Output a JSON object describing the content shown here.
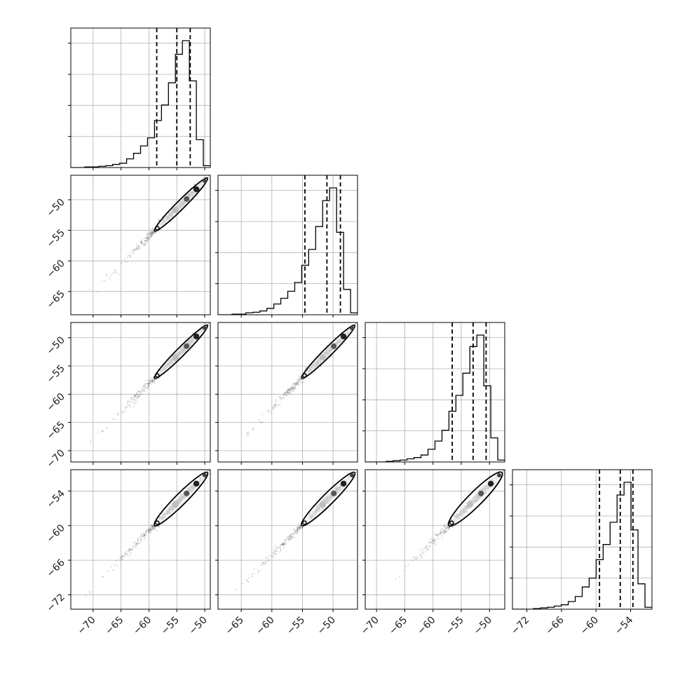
{
  "chart_data": {
    "type": "corner",
    "params": [
      {
        "axis_ticks": [
          -70,
          -65,
          -60,
          -55,
          -50
        ],
        "tick_labels": [
          "−70",
          "−65",
          "−60",
          "−55",
          "−50"
        ],
        "range": [
          -74,
          -49
        ],
        "quantiles": [
          -58.6,
          -55.0,
          -52.6
        ],
        "hist_edges": [
          -74,
          -72.75,
          -71.5,
          -70.25,
          -69,
          -67.75,
          -66.5,
          -65.25,
          -64,
          -62.75,
          -61.5,
          -60.25,
          -59,
          -57.75,
          -56.5,
          -55.25,
          -54,
          -52.75,
          -51.5,
          -50.25,
          -49
        ],
        "hist_counts": [
          0,
          0,
          1,
          1,
          2,
          3,
          5,
          7,
          14,
          23,
          35,
          48,
          76,
          101,
          137,
          183,
          205,
          140,
          45,
          3
        ]
      },
      {
        "axis_ticks": [
          -65,
          -60,
          -55,
          -50
        ],
        "tick_labels": [
          "−65",
          "−60",
          "−55",
          "−50"
        ],
        "range": [
          -68.8,
          -46
        ],
        "quantiles": [
          -54.6,
          -51.0,
          -48.8
        ],
        "hist_edges": [
          -68.8,
          -67.66,
          -66.52,
          -65.38,
          -64.24,
          -63.1,
          -61.96,
          -60.82,
          -59.68,
          -58.54,
          -57.4,
          -56.26,
          -55.12,
          -53.98,
          -52.84,
          -51.7,
          -50.56,
          -49.42,
          -48.28,
          -47.14,
          -46
        ],
        "hist_counts": [
          0,
          0,
          1,
          1,
          3,
          4,
          6,
          10,
          17,
          26,
          37,
          51,
          78,
          103,
          139,
          180,
          200,
          130,
          40,
          3
        ]
      },
      {
        "axis_ticks": [
          -70,
          -65,
          -60,
          -55,
          -50
        ],
        "tick_labels": [
          "−70",
          "−65",
          "−60",
          "−55",
          "−50"
        ],
        "range": [
          -72,
          -47.3
        ],
        "quantiles": [
          -56.6,
          -52.9,
          -50.6
        ],
        "hist_edges": [
          -72,
          -70.765,
          -69.53,
          -68.295,
          -67.06,
          -65.825,
          -64.59,
          -63.355,
          -62.12,
          -60.885,
          -59.65,
          -58.415,
          -57.18,
          -55.945,
          -54.71,
          -53.475,
          -52.24,
          -51.005,
          -49.77,
          -48.535,
          -47.3
        ],
        "hist_counts": [
          0,
          0,
          0,
          1,
          2,
          3,
          5,
          7,
          11,
          20,
          33,
          50,
          80,
          105,
          140,
          182,
          200,
          120,
          38,
          3
        ]
      },
      {
        "axis_ticks": [
          -72,
          -66,
          -60,
          -54
        ],
        "tick_labels": [
          "−72",
          "−66",
          "−60",
          "−54"
        ],
        "range": [
          -74.5,
          -50.3
        ],
        "quantiles": [
          -59.4,
          -55.8,
          -53.6
        ],
        "hist_edges": [
          -74.5,
          -73.29,
          -72.08,
          -70.87,
          -69.66,
          -68.45,
          -67.24,
          -66.03,
          -64.82,
          -63.61,
          -62.4,
          -61.19,
          -59.98,
          -58.77,
          -57.56,
          -56.35,
          -55.14,
          -53.93,
          -52.72,
          -51.51,
          -50.3
        ],
        "hist_counts": [
          0,
          0,
          0,
          1,
          2,
          3,
          5,
          7,
          12,
          20,
          35,
          49,
          78,
          102,
          137,
          180,
          200,
          125,
          40,
          3
        ]
      }
    ],
    "pair_correlation": 0.99,
    "grid": true,
    "quantile_line_style": "dashed",
    "histogram_style": "step",
    "title": "",
    "xlabel": "",
    "ylabel": "",
    "colors": {
      "line": "#000000",
      "grid": "#b0b0b0",
      "points": "#444444",
      "background": "#ffffff"
    }
  }
}
